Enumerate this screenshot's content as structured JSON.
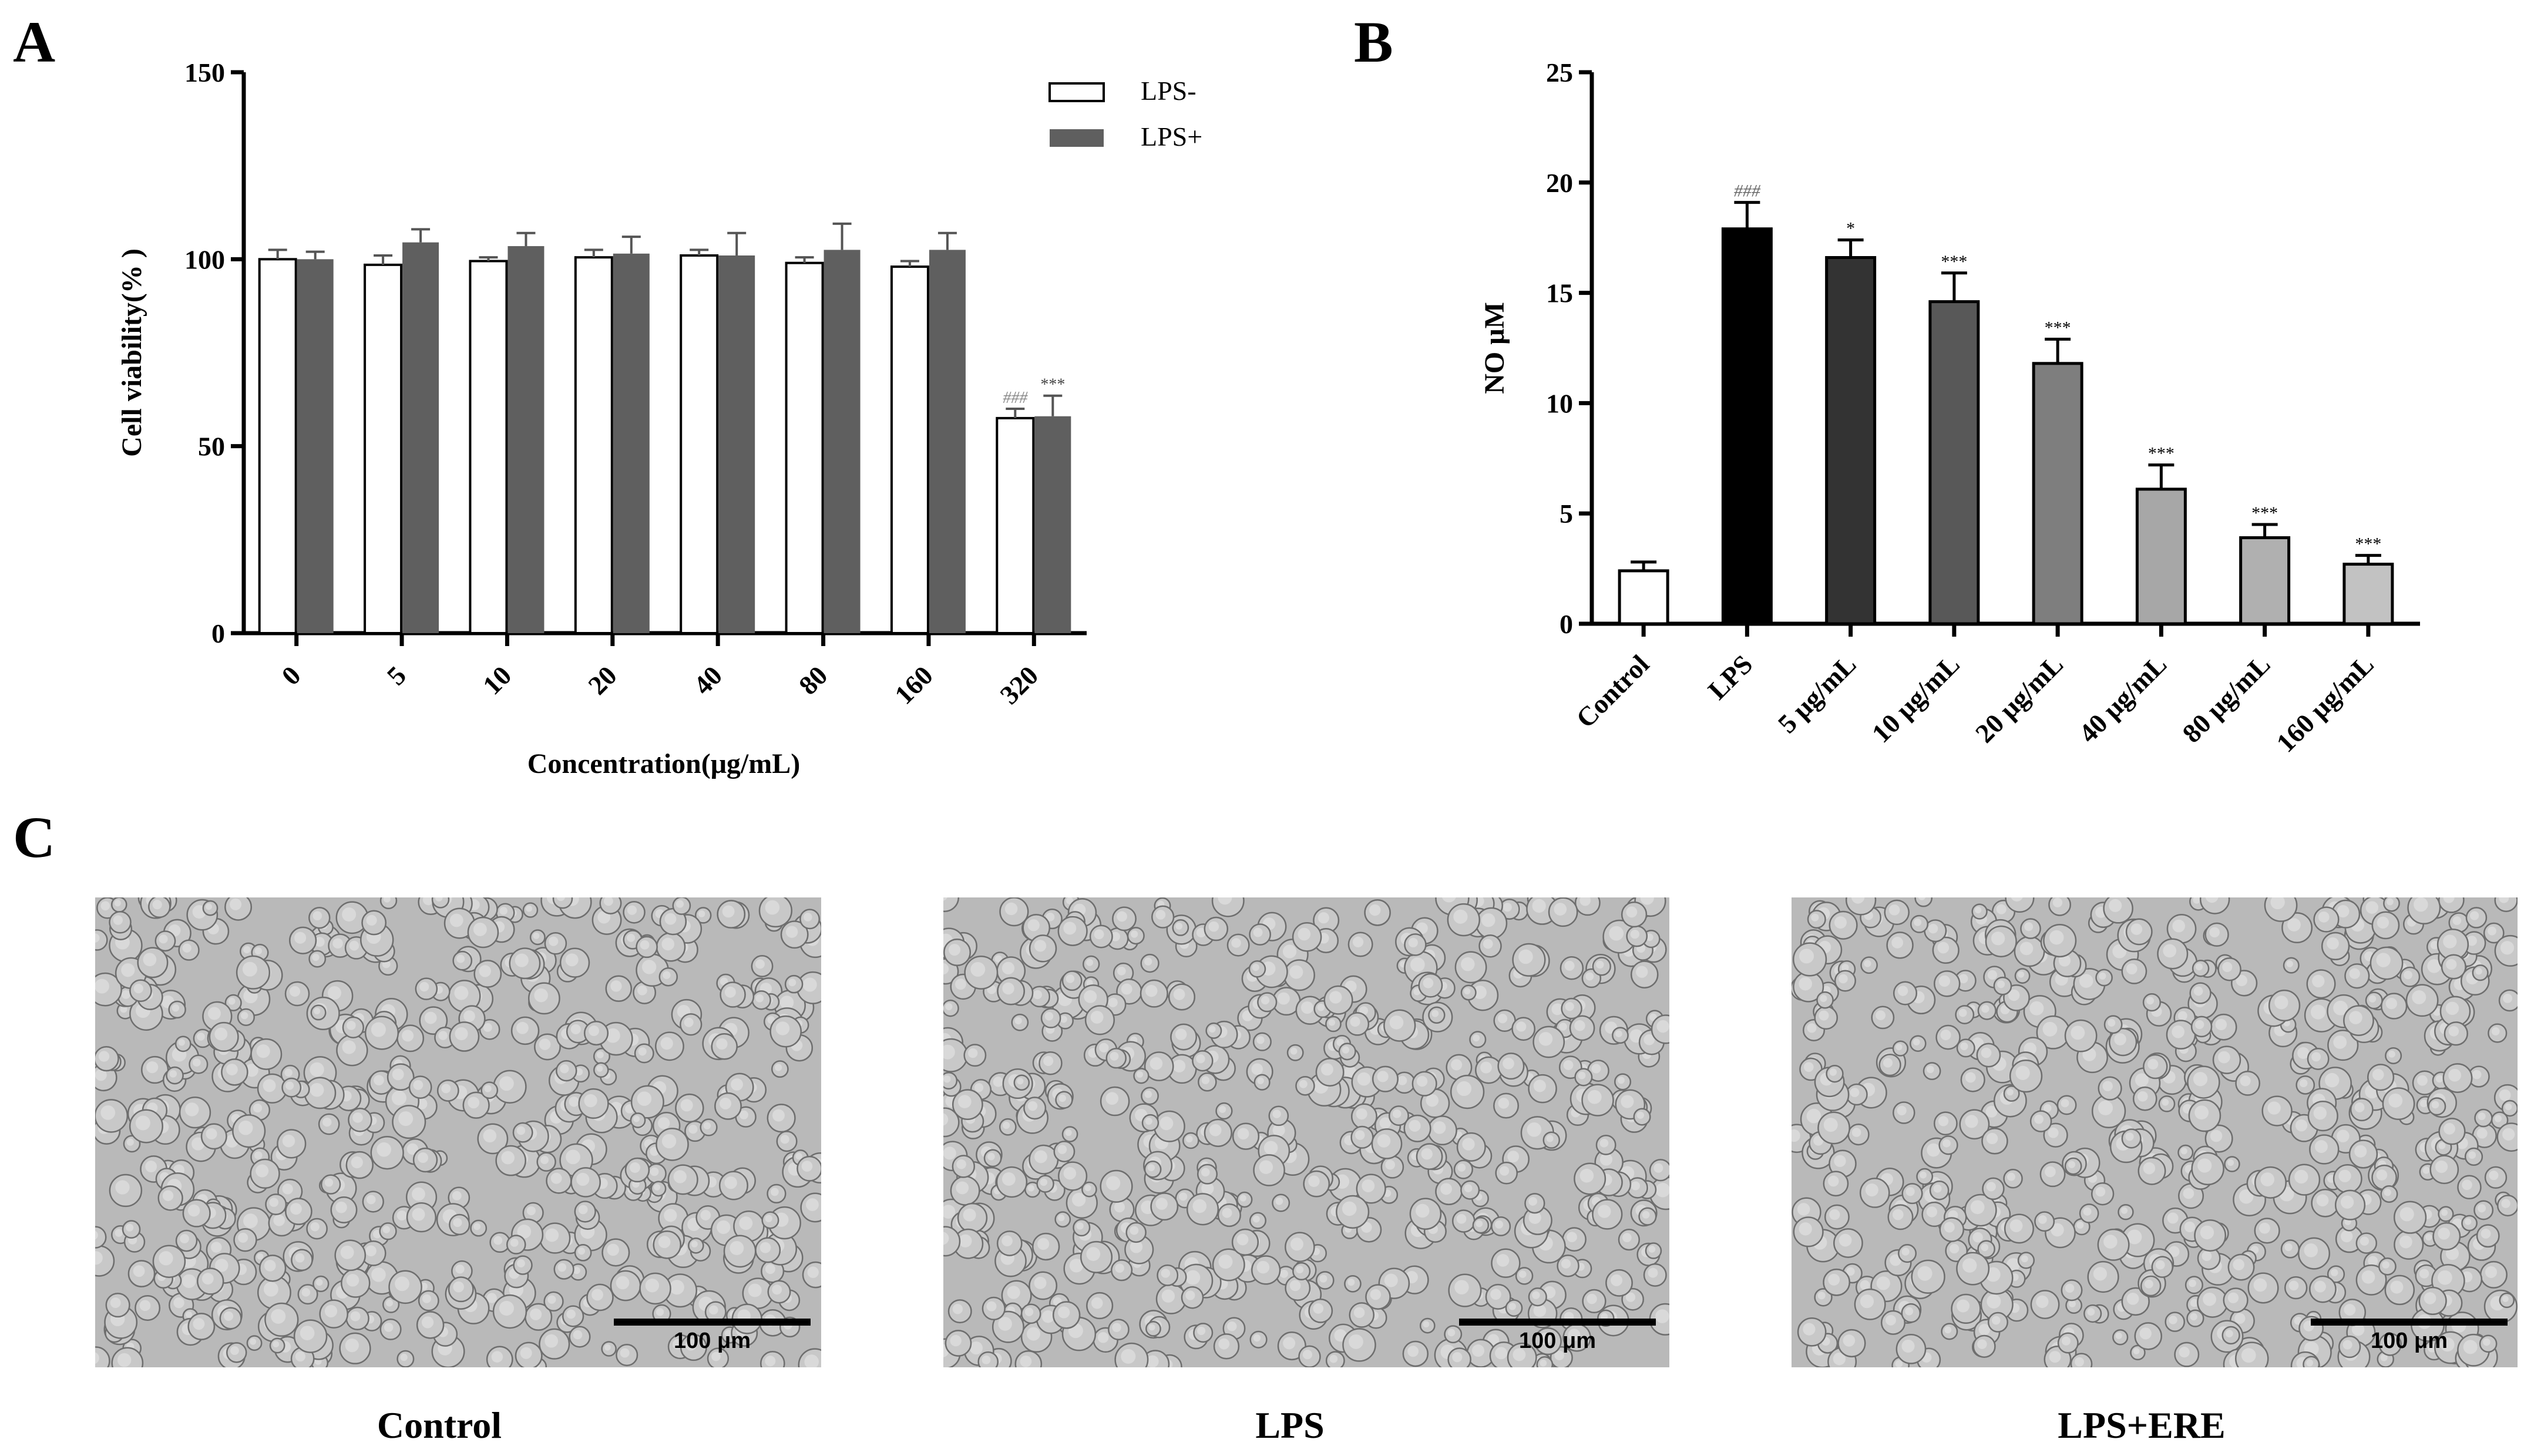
{
  "panel_labels": {
    "a": "A",
    "b": "B",
    "c": "C"
  },
  "chart_data": [
    {
      "type": "bar",
      "panel": "A",
      "categories": [
        "0",
        "5",
        "10",
        "20",
        "40",
        "80",
        "160",
        "320"
      ],
      "series": [
        {
          "name": "LPS-",
          "values": [
            100,
            98.5,
            99.5,
            100.5,
            101,
            99,
            98,
            57.5
          ],
          "errors": [
            2.5,
            2.5,
            1,
            2,
            1.5,
            1.5,
            1.5,
            2.5
          ],
          "color": "#ffffff"
        },
        {
          "name": "LPS+",
          "values": [
            100,
            104.5,
            103.5,
            101.5,
            101,
            102.5,
            102.5,
            58
          ],
          "errors": [
            2,
            3.5,
            3.5,
            4.5,
            6,
            7,
            4.5,
            5.5
          ],
          "color": "#5f5f5f"
        }
      ],
      "annotations": [
        {
          "category": "320",
          "series": "LPS-",
          "text": "###"
        },
        {
          "category": "320",
          "series": "LPS+",
          "text": "***"
        }
      ],
      "xlabel": "Concentration(μg/mL)",
      "ylabel": "Cell viability(% )",
      "ylim": [
        0,
        150
      ],
      "yticks": [
        0,
        50,
        100,
        150
      ],
      "legend_position": "top-right"
    },
    {
      "type": "bar",
      "panel": "B",
      "categories": [
        "Control",
        "LPS",
        "5 μg/mL",
        "10 μg/mL",
        "20 μg/mL",
        "40 μg/mL",
        "80 μg/mL",
        "160 μg/mL"
      ],
      "values": [
        2.4,
        17.9,
        16.6,
        14.6,
        11.8,
        6.1,
        3.9,
        2.7
      ],
      "errors": [
        0.4,
        1.2,
        0.8,
        1.3,
        1.1,
        1.1,
        0.6,
        0.4
      ],
      "colors": [
        "#ffffff",
        "#000000",
        "#333333",
        "#585858",
        "#7e7e7e",
        "#a7a7a7",
        "#b0b0b0",
        "#c2c2c2"
      ],
      "annotations": [
        "",
        "###",
        "*",
        "***",
        "***",
        "***",
        "***",
        "***"
      ],
      "ylabel": "NO μM",
      "ylim": [
        0,
        25
      ],
      "yticks": [
        0,
        5,
        10,
        15,
        20,
        25
      ]
    }
  ],
  "panel_c": {
    "images": [
      {
        "caption": "Control",
        "scale_bar": "100 μm"
      },
      {
        "caption": "LPS",
        "scale_bar": "100 μm"
      },
      {
        "caption": "LPS+ERE",
        "scale_bar": "100 μm"
      }
    ]
  }
}
